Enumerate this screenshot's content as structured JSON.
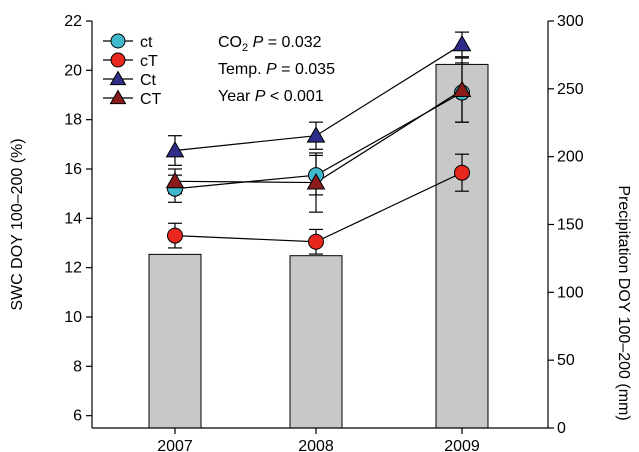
{
  "chart_data": {
    "type": "line",
    "categories": [
      "2007",
      "2008",
      "2009"
    ],
    "left_axis": {
      "label": "SWC DOY 100–200 (%)",
      "ylim": [
        5.5,
        22
      ],
      "ticks": [
        6,
        8,
        10,
        12,
        14,
        16,
        18,
        20,
        22
      ]
    },
    "right_axis": {
      "label": "Precipitation DOY 100–200 (mm)",
      "ylim": [
        0,
        300
      ],
      "ticks": [
        0,
        50,
        100,
        150,
        200,
        250,
        300
      ]
    },
    "bars": {
      "name": "Precipitation",
      "axis": "right",
      "values": [
        128,
        127,
        268
      ],
      "color": "#c8c8c8"
    },
    "series": [
      {
        "name": "ct",
        "marker": "circle",
        "color": "#3fb8cc",
        "values": [
          15.2,
          15.75,
          19.1
        ],
        "errors": [
          0.55,
          0.8,
          1.2
        ]
      },
      {
        "name": "cT",
        "marker": "circle",
        "color": "#e8281e",
        "values": [
          13.3,
          13.05,
          15.85
        ],
        "errors": [
          0.5,
          0.5,
          0.75
        ]
      },
      {
        "name": "Ct",
        "marker": "triangle",
        "color": "#2e2e8a",
        "values": [
          16.75,
          17.35,
          21.05
        ],
        "errors": [
          0.6,
          0.55,
          0.5
        ]
      },
      {
        "name": "CT",
        "marker": "triangle",
        "color": "#8b1a1a",
        "values": [
          15.5,
          15.45,
          19.2
        ],
        "errors": [
          0.5,
          1.2,
          1.3
        ]
      }
    ],
    "annotations": [
      {
        "prefix": "CO",
        "sub": "2",
        "italic": " P",
        "rest": " = 0.032"
      },
      {
        "prefix": "Temp.",
        "sub": "",
        "italic": " P",
        "rest": " = 0.035"
      },
      {
        "prefix": "Year",
        "sub": "",
        "italic": " P",
        "rest": " < 0.001"
      }
    ],
    "legend_position": "top-left",
    "grid": false
  }
}
